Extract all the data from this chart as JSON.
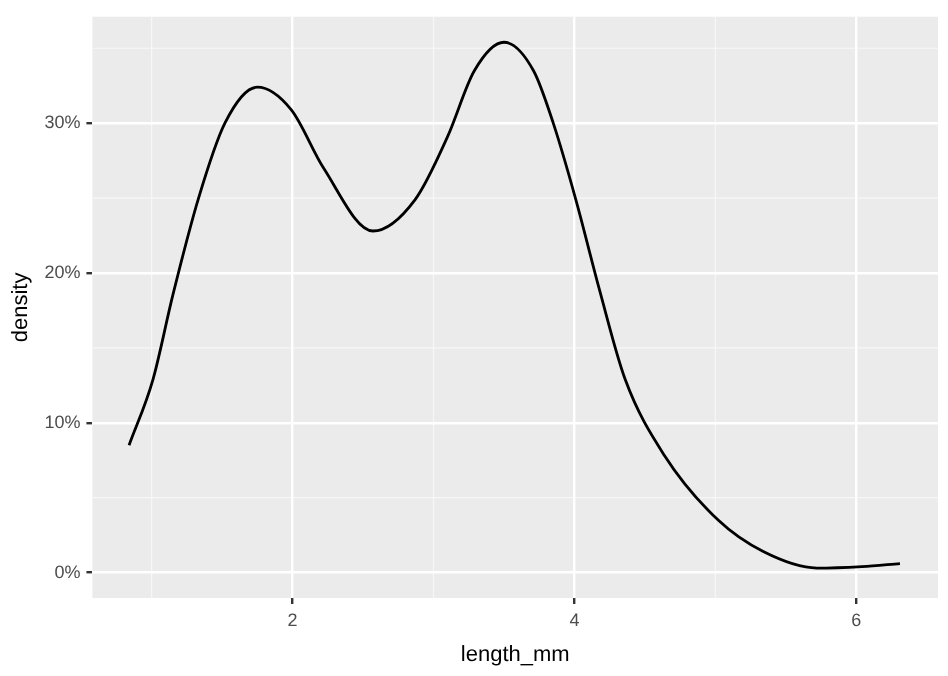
{
  "chart_data": {
    "type": "line",
    "xlabel": "length_mm",
    "ylabel": "density",
    "x": [
      0.84,
      1.01,
      1.15,
      1.33,
      1.52,
      1.75,
      1.99,
      2.22,
      2.57,
      2.87,
      3.1,
      3.29,
      3.5,
      3.71,
      3.85,
      4.01,
      4.18,
      4.36,
      4.64,
      5.02,
      5.34,
      5.72,
      6.04,
      6.31
    ],
    "series": [
      {
        "color": "#000000",
        "values": [
          8.5,
          12.9,
          18.5,
          24.9,
          30,
          32.4,
          30.9,
          27,
          22.8,
          24.9,
          29.1,
          33.5,
          35.4,
          33.5,
          30,
          24.9,
          18.8,
          12.9,
          7.8,
          3.5,
          1.4,
          0.3,
          0.4,
          0.6
        ]
      }
    ],
    "xlim": [
      0.58,
      6.58
    ],
    "xticks": [
      2,
      4,
      6
    ],
    "ylim": [
      -1.7,
      37.1
    ],
    "yticks": [
      {
        "value": 0,
        "label": "0%"
      },
      {
        "value": 10,
        "label": "10%"
      },
      {
        "value": 20,
        "label": "20%"
      },
      {
        "value": 30,
        "label": "30%"
      }
    ],
    "grid": true,
    "legend": false,
    "marker": "none",
    "line_style": "solid"
  }
}
